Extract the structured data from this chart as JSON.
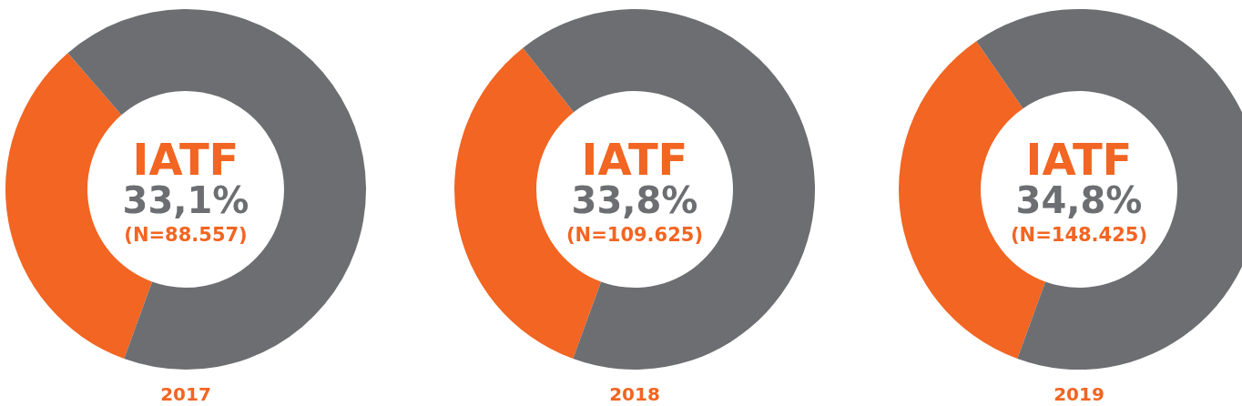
{
  "chart_data": [
    {
      "type": "donut",
      "title": "2017",
      "categories": [
        null,
        null
      ],
      "values": [
        33.1,
        66.9
      ],
      "colors": [
        "#f26522",
        "#6d6e71"
      ],
      "annotations": [
        "IATF",
        "33,1%",
        "(N=88.557)"
      ]
    },
    {
      "type": "donut",
      "title": "2018",
      "categories": [
        null,
        null
      ],
      "values": [
        33.8,
        66.2
      ],
      "colors": [
        "#f26522",
        "#6d6e71"
      ],
      "annotations": [
        "IATF",
        "33,8%",
        "(N=109.625)"
      ]
    },
    {
      "type": "donut",
      "title": "2019",
      "categories": [
        null,
        null
      ],
      "values": [
        34.8,
        65.2
      ],
      "colors": [
        "#f26522",
        "#6d6e71"
      ],
      "annotations": [
        "IATF",
        "34,8%",
        "(N=148.425)"
      ]
    }
  ]
}
